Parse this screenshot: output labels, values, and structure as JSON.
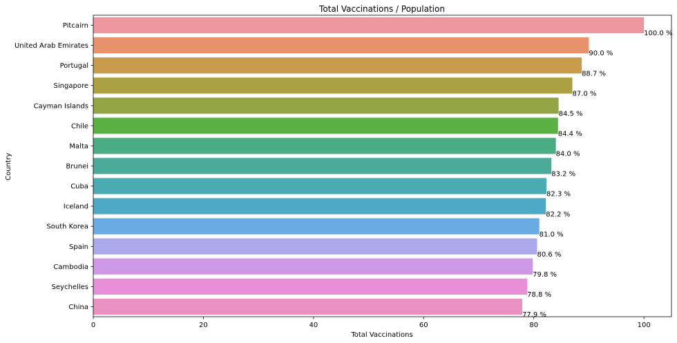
{
  "chart_data": {
    "type": "bar",
    "orientation": "horizontal",
    "title": "Total Vaccinations / Population",
    "xlabel": "Total Vaccinations",
    "ylabel": "Country",
    "xlim": [
      0,
      105
    ],
    "x_ticks": [
      0,
      20,
      40,
      60,
      80,
      100
    ],
    "x_tick_labels": [
      "0",
      "20",
      "40",
      "60",
      "80",
      "100"
    ],
    "grid": false,
    "legend": "none",
    "categories": [
      "Pitcairn",
      "United Arab Emirates",
      "Portugal",
      "Singapore",
      "Cayman Islands",
      "Chile",
      "Malta",
      "Brunei",
      "Cuba",
      "Iceland",
      "South Korea",
      "Spain",
      "Cambodia",
      "Seychelles",
      "China"
    ],
    "values": [
      100.0,
      90.0,
      88.7,
      87.0,
      84.5,
      84.4,
      84.0,
      83.2,
      82.3,
      82.2,
      81.0,
      80.6,
      79.8,
      78.8,
      77.9
    ],
    "data_labels": [
      "100.0 %",
      "90.0 %",
      "88.7 %",
      "87.0 %",
      "84.5 %",
      "84.4 %",
      "84.0 %",
      "83.2 %",
      "82.3 %",
      "82.2 %",
      "81.0 %",
      "80.6 %",
      "79.8 %",
      "78.8 %",
      "77.9 %"
    ],
    "colors": [
      "#ec96a0",
      "#e7916d",
      "#ca9b4a",
      "#aba042",
      "#93a443",
      "#59b143",
      "#4aac82",
      "#4aab99",
      "#4caab1",
      "#4ea9c6",
      "#6aace2",
      "#aba8ec",
      "#cd99e6",
      "#e88fd8",
      "#e991c0"
    ]
  }
}
